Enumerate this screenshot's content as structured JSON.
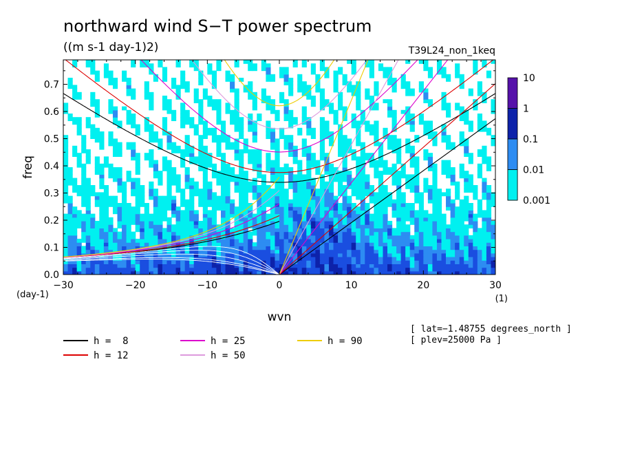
{
  "chart_data": {
    "type": "heatmap",
    "title": "northward wind S−T power spectrum",
    "subtitle": "((m s-1 day-1)2)",
    "run_label": "T39L24_non_1keq",
    "xlabel": "wvn",
    "ylabel": "freq",
    "x_unit": "(1)",
    "y_unit": "(day-1)",
    "xlim": [
      -30,
      30
    ],
    "ylim": [
      0,
      0.79
    ],
    "x_ticks": [
      "−30",
      "−20",
      "−10",
      "0",
      "10",
      "20",
      "30"
    ],
    "y_ticks": [
      "0.0",
      "0.1",
      "0.2",
      "0.3",
      "0.4",
      "0.5",
      "0.6",
      "0.7"
    ],
    "colorbar": {
      "levels": [
        "10",
        "1",
        "0.1",
        "0.01",
        "0.001"
      ],
      "colors": [
        "#5511aa",
        "#0d22aa",
        "#1a4ee0",
        "#2d8cf2",
        "#00f0f0"
      ]
    },
    "dispersion_curves": [
      {
        "label": "h =  8",
        "h": 8,
        "color": "#000000"
      },
      {
        "label": "h = 12",
        "h": 12,
        "color": "#dd0000"
      },
      {
        "label": "h = 25",
        "h": 25,
        "color": "#dd00cc"
      },
      {
        "label": "h = 50",
        "h": 50,
        "color": "#dd99dd"
      },
      {
        "label": "h = 90",
        "h": 90,
        "color": "#eecc00"
      }
    ],
    "annotations": [
      "[ lat=−1.48755 degrees_north ]",
      "[ plev=25000 Pa ]"
    ]
  }
}
